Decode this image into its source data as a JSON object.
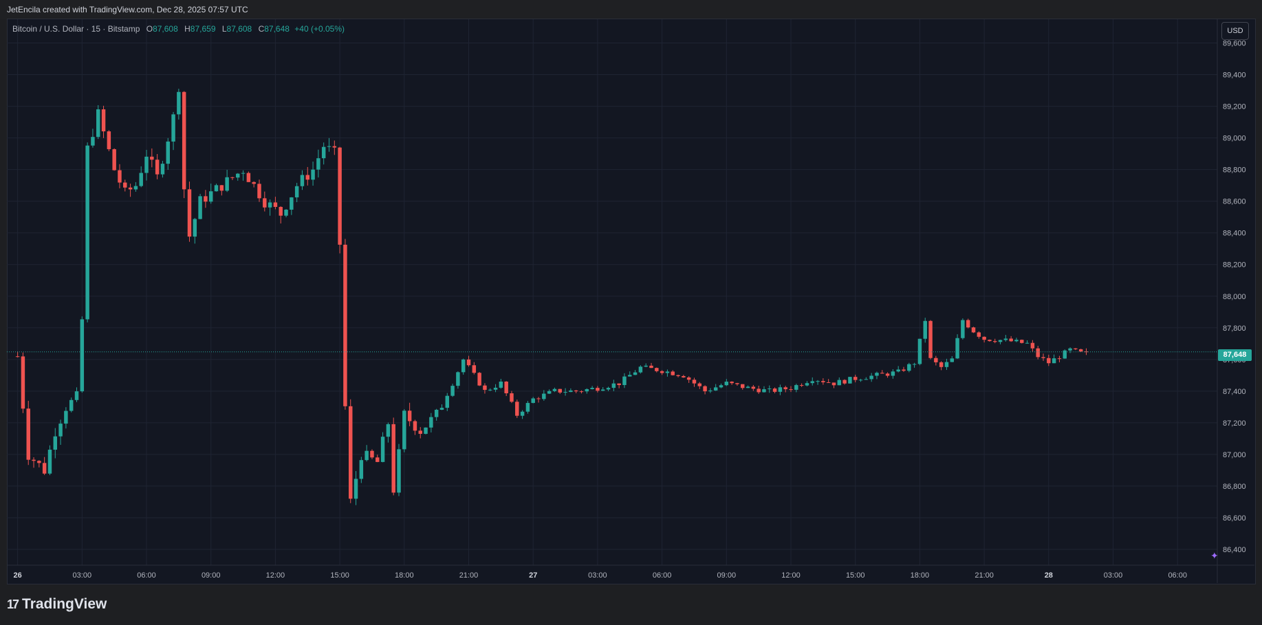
{
  "header": {
    "attribution": "JetEncila created with TradingView.com, Dec 28, 2025 07:57 UTC"
  },
  "legend": {
    "symbol": "Bitcoin / U.S. Dollar · 15 · Bitstamp",
    "open_label": "O",
    "open": "87,608",
    "high_label": "H",
    "high": "87,659",
    "low_label": "L",
    "low": "87,608",
    "close_label": "C",
    "close": "87,648",
    "change": "+40 (+0.05%)"
  },
  "currency_button": "USD",
  "last_price_tag": "87,648",
  "brand": {
    "logo": "17",
    "name": "TradingView"
  },
  "colors": {
    "background": "#131722",
    "up": "#26a69a",
    "down": "#ef5350",
    "grid": "#1f2433",
    "axis_text": "#b2b5be"
  },
  "icons": {
    "assistant": "sparkle-icon",
    "logo": "tradingview-logo-icon"
  },
  "chart_data": {
    "type": "candlestick",
    "interval": "15",
    "y_ticks": [
      "89,600",
      "89,400",
      "89,200",
      "89,000",
      "88,800",
      "88,600",
      "88,400",
      "88,200",
      "88,000",
      "87,800",
      "87,600",
      "87,400",
      "87,200",
      "87,000",
      "86,800",
      "86,600",
      "86,400"
    ],
    "ylim": [
      86300,
      89750
    ],
    "x_ticks": [
      "26",
      "03:00",
      "06:00",
      "09:00",
      "12:00",
      "15:00",
      "18:00",
      "21:00",
      "27",
      "03:00",
      "06:00",
      "09:00",
      "12:00",
      "15:00",
      "18:00",
      "21:00",
      "28",
      "03:00",
      "06:00"
    ],
    "x_range_hours": [
      -0.5,
      55.85
    ],
    "last_price": 87648,
    "grid": true,
    "keypoints_close": [
      [
        0,
        87620
      ],
      [
        0.5,
        87000
      ],
      [
        1.25,
        86900
      ],
      [
        1.75,
        87150
      ],
      [
        2.25,
        87300
      ],
      [
        2.75,
        87360
      ],
      [
        3.0,
        87850
      ],
      [
        3.25,
        88930
      ],
      [
        3.75,
        89150
      ],
      [
        4.5,
        88800
      ],
      [
        5.0,
        88650
      ],
      [
        5.5,
        88700
      ],
      [
        6.0,
        88900
      ],
      [
        6.5,
        88750
      ],
      [
        7.0,
        89000
      ],
      [
        7.25,
        89130
      ],
      [
        7.5,
        89330
      ],
      [
        7.75,
        88680
      ],
      [
        8.0,
        88380
      ],
      [
        8.5,
        88600
      ],
      [
        9.5,
        88700
      ],
      [
        10.5,
        88800
      ],
      [
        11.5,
        88600
      ],
      [
        12.25,
        88520
      ],
      [
        13.0,
        88700
      ],
      [
        13.75,
        88800
      ],
      [
        14.25,
        88950
      ],
      [
        14.75,
        88900
      ],
      [
        15.0,
        88330
      ],
      [
        15.25,
        87300
      ],
      [
        15.5,
        86700
      ],
      [
        16.0,
        87000
      ],
      [
        16.75,
        86950
      ],
      [
        17.25,
        87200
      ],
      [
        17.5,
        86780
      ],
      [
        17.75,
        87000
      ],
      [
        18.0,
        87250
      ],
      [
        18.75,
        87150
      ],
      [
        19.5,
        87250
      ],
      [
        20.25,
        87450
      ],
      [
        20.75,
        87600
      ],
      [
        21.25,
        87500
      ],
      [
        21.75,
        87400
      ],
      [
        22.5,
        87450
      ],
      [
        23.25,
        87250
      ],
      [
        24.0,
        87350
      ],
      [
        25.0,
        87400
      ],
      [
        26.0,
        87400
      ],
      [
        27.0,
        87420
      ],
      [
        28.0,
        87450
      ],
      [
        29.0,
        87550
      ],
      [
        30.0,
        87530
      ],
      [
        31.0,
        87500
      ],
      [
        32.0,
        87400
      ],
      [
        33.0,
        87450
      ],
      [
        34.0,
        87420
      ],
      [
        35.0,
        87400
      ],
      [
        36.0,
        87420
      ],
      [
        37.0,
        87480
      ],
      [
        38.0,
        87450
      ],
      [
        39.0,
        87480
      ],
      [
        40.0,
        87500
      ],
      [
        41.0,
        87520
      ],
      [
        41.75,
        87580
      ],
      [
        42.25,
        87850
      ],
      [
        42.5,
        87600
      ],
      [
        43.0,
        87550
      ],
      [
        43.5,
        87600
      ],
      [
        44.0,
        87850
      ],
      [
        44.5,
        87780
      ],
      [
        45.0,
        87730
      ],
      [
        46.0,
        87720
      ],
      [
        47.0,
        87700
      ],
      [
        47.5,
        87620
      ],
      [
        48.0,
        87580
      ],
      [
        48.5,
        87620
      ],
      [
        49.0,
        87660
      ],
      [
        49.5,
        87640
      ],
      [
        49.75,
        87648
      ]
    ]
  }
}
